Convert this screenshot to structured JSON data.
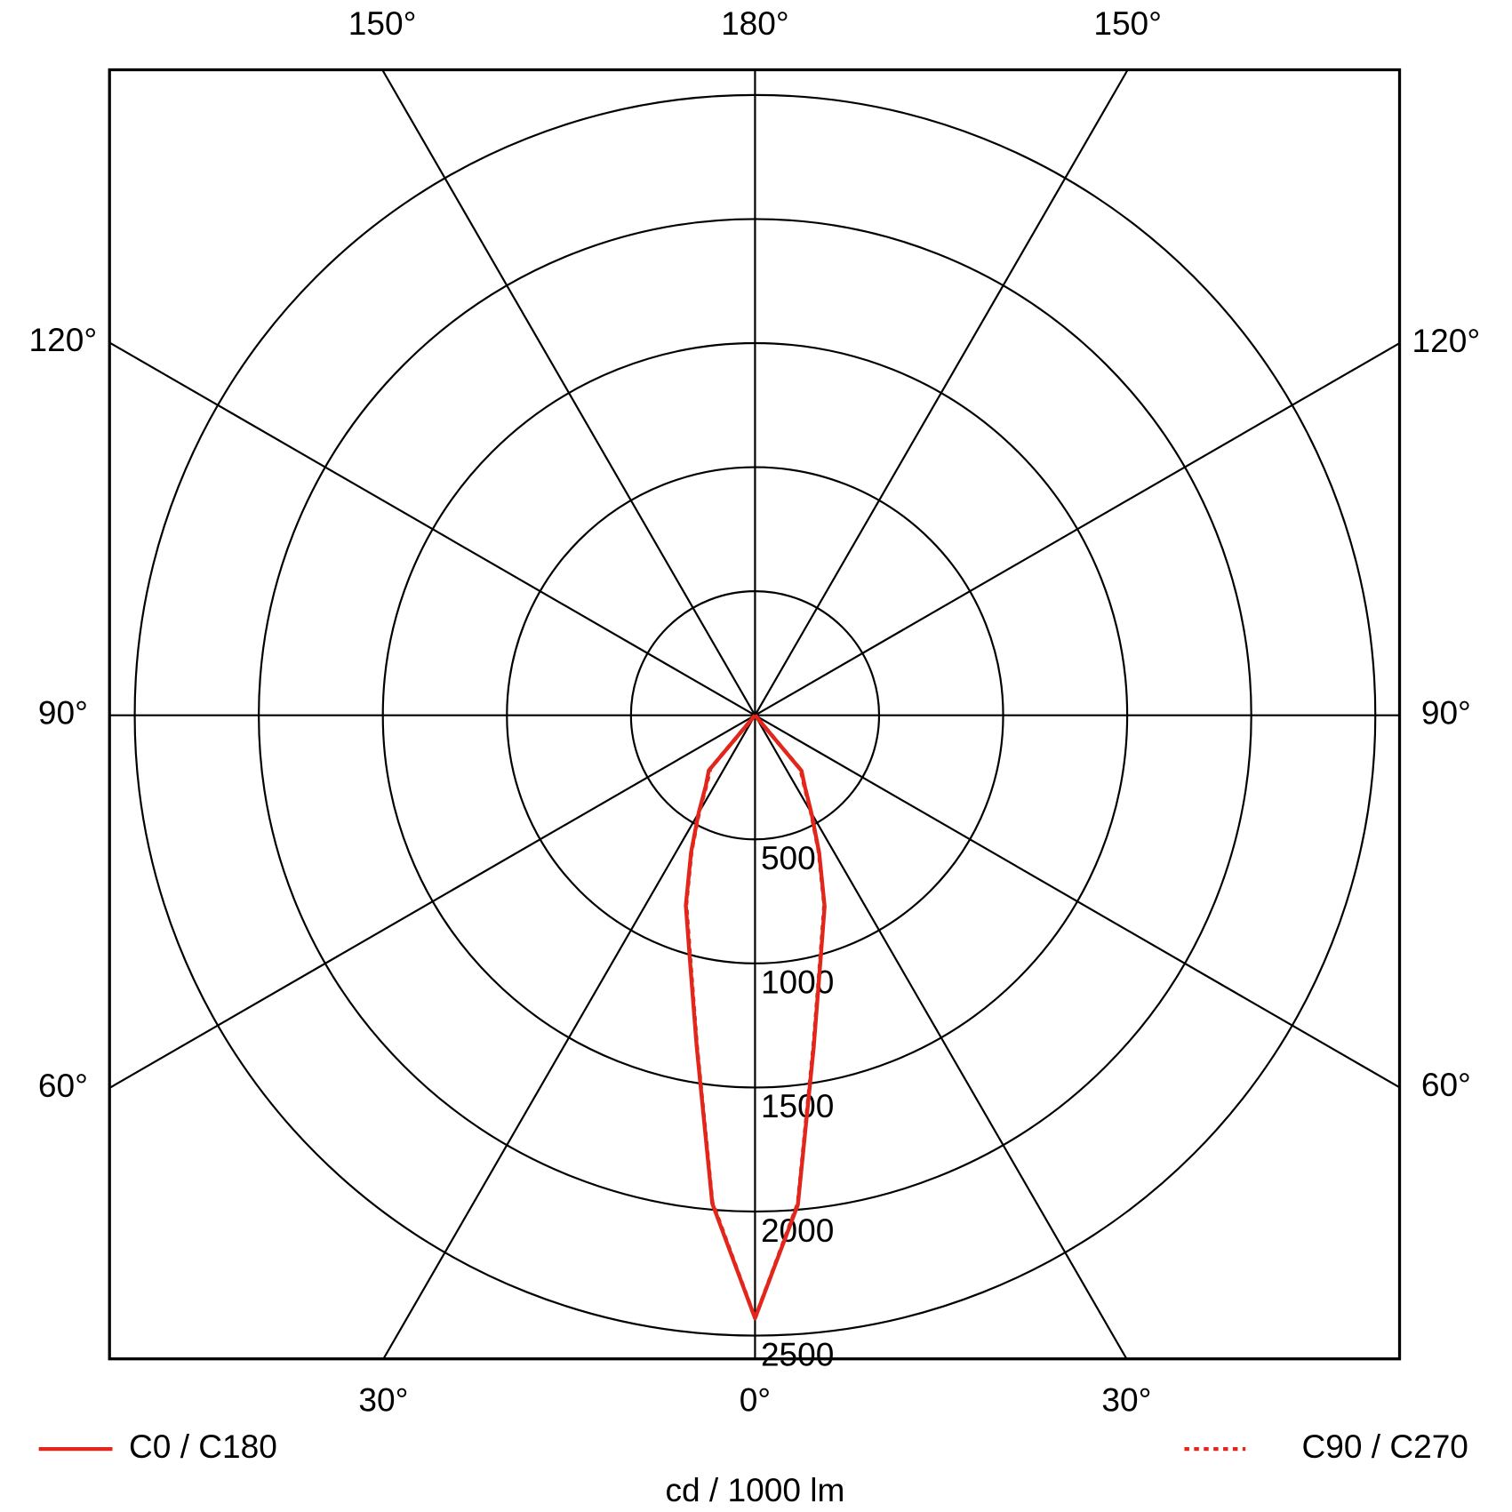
{
  "chart_data": {
    "type": "polar",
    "x": [
      -45,
      -40,
      -35,
      -30,
      -25,
      -20,
      -15,
      -10,
      -5,
      0,
      5,
      10,
      15,
      20,
      25,
      30,
      35,
      40,
      45
    ],
    "series": [
      {
        "name": "C0 / C180",
        "color": "#e3261c",
        "line_style": "solid",
        "values": [
          0,
          290,
          345,
          455,
          610,
          815,
          1015,
          1355,
          1975,
          2430,
          1980,
          1360,
          1020,
          820,
          612,
          455,
          350,
          292,
          0
        ]
      },
      {
        "name": "C90 / C270",
        "color": "#e3261c",
        "line_style": "dotted",
        "values": [
          0,
          280,
          340,
          450,
          605,
          810,
          1010,
          1350,
          1970,
          2430,
          1975,
          1355,
          1015,
          815,
          608,
          450,
          345,
          285,
          0
        ]
      }
    ],
    "rlim": [
      0,
      2500
    ],
    "rticks": [
      500,
      1000,
      1500,
      2000,
      2500
    ],
    "angle_ticks": [
      {
        "value": -150,
        "label": "150°"
      },
      {
        "value": 180,
        "label": "180°"
      },
      {
        "value": 150,
        "label": "150°"
      },
      {
        "value": -120,
        "label": "120°"
      },
      {
        "value": 120,
        "label": "120°"
      },
      {
        "value": -90,
        "label": "90°"
      },
      {
        "value": 90,
        "label": "90°"
      },
      {
        "value": -60,
        "label": "60°"
      },
      {
        "value": 60,
        "label": "60°"
      },
      {
        "value": -30,
        "label": "30°"
      },
      {
        "value": 0,
        "label": "0°"
      },
      {
        "value": 30,
        "label": "30°"
      }
    ],
    "unit_label": "cd / 1000 lm"
  }
}
